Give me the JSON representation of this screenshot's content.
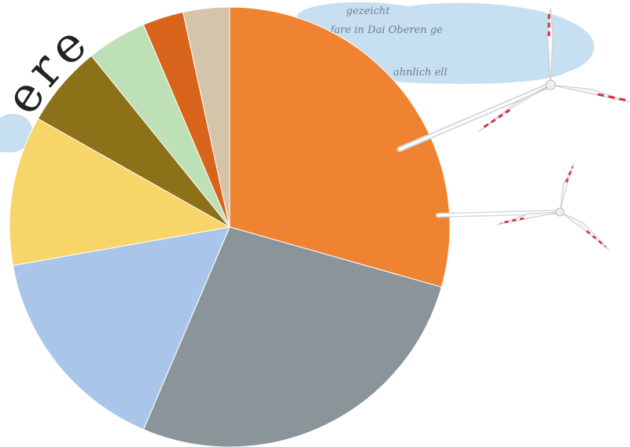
{
  "heading_fragment": "ere",
  "cloud_script": {
    "line1": "gezeicht",
    "line2": "fare in Dai Oberen ge",
    "line3": "ahnlich ell"
  },
  "chart_data": {
    "type": "pie",
    "start_angle_deg": 0,
    "direction": "clockwise",
    "slices": [
      {
        "value": 29.4,
        "color": "#ef8331"
      },
      {
        "value": 27.0,
        "color": "#8a9499"
      },
      {
        "value": 15.8,
        "color": "#a9c6ea"
      },
      {
        "value": 11.0,
        "color": "#f7d569"
      },
      {
        "value": 6.0,
        "color": "#8c7118"
      },
      {
        "value": 4.4,
        "color": "#bee0b6"
      },
      {
        "value": 3.0,
        "color": "#d8641c"
      },
      {
        "value": 3.4,
        "color": "#d4c5aa"
      }
    ]
  },
  "colors": {
    "cloud": "#bcd9ee",
    "turbine_blade": "#ffffff",
    "turbine_stripe": "#d22f3c"
  },
  "icons": [
    "wind-turbine-icon",
    "cloud-icon"
  ]
}
